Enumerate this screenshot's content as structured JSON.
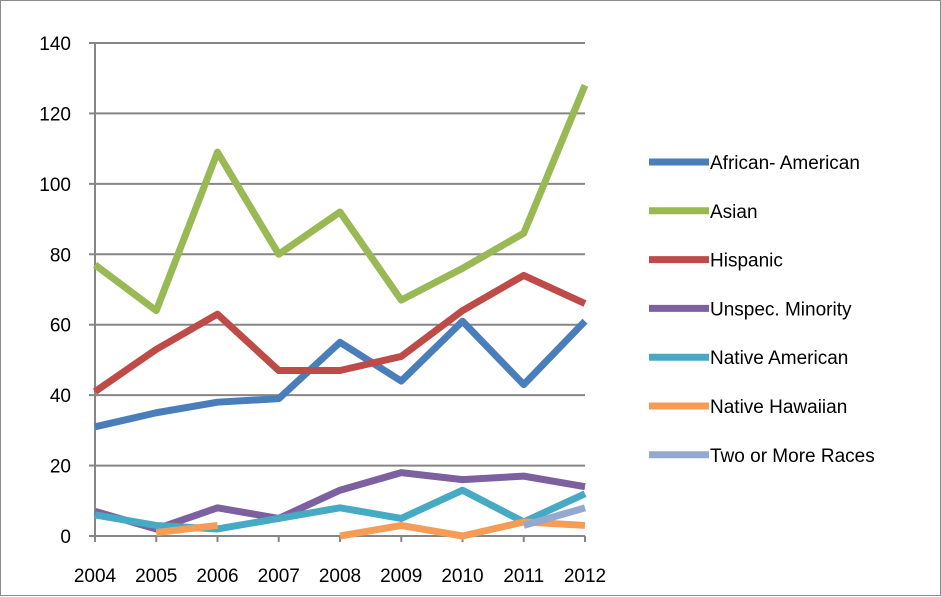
{
  "chart_data": {
    "type": "line",
    "x": [
      "2004",
      "2005",
      "2006",
      "2007",
      "2008",
      "2009",
      "2010",
      "2011",
      "2012"
    ],
    "ylim": [
      0,
      140
    ],
    "yticks": [
      0,
      20,
      40,
      60,
      80,
      100,
      120,
      140
    ],
    "grid": "horizontal",
    "legend_position": "right",
    "series": [
      {
        "name": "African- American",
        "color": "#4a7ebb",
        "values": [
          31,
          35,
          38,
          39,
          55,
          44,
          61,
          43,
          61
        ]
      },
      {
        "name": "Asian",
        "color": "#98b954",
        "values": [
          77,
          64,
          109,
          80,
          92,
          67,
          76,
          86,
          128
        ]
      },
      {
        "name": "Hispanic",
        "color": "#be4b48",
        "values": [
          41,
          53,
          63,
          47,
          47,
          51,
          64,
          74,
          66
        ]
      },
      {
        "name": "Unspec. Minority",
        "color": "#7d60a0",
        "values": [
          7,
          2,
          8,
          5,
          13,
          18,
          16,
          17,
          14
        ]
      },
      {
        "name": "Native American",
        "color": "#46aac5",
        "values": [
          6,
          3,
          2,
          5,
          8,
          5,
          13,
          4,
          12
        ]
      },
      {
        "name": "Native Hawaiian",
        "color": "#f59d56",
        "values": [
          null,
          1,
          3,
          null,
          0,
          3,
          0,
          4,
          3
        ]
      },
      {
        "name": "Two or More Races",
        "color": "#93a9cf",
        "values": [
          null,
          null,
          null,
          null,
          null,
          null,
          null,
          3,
          8
        ]
      }
    ]
  }
}
